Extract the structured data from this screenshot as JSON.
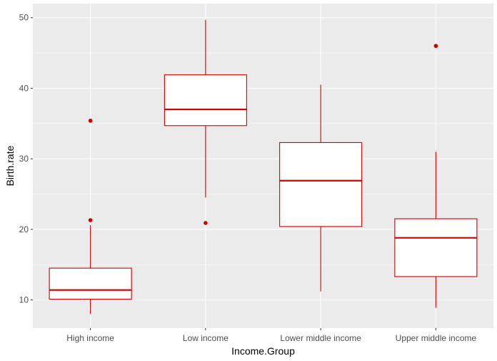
{
  "chart_data": {
    "type": "boxplot",
    "title": "",
    "xlabel": "Income.Group",
    "ylabel": "Birth.rate",
    "ylim": [
      6,
      52
    ],
    "yticks": [
      10,
      20,
      30,
      40,
      50
    ],
    "grid": true,
    "legend": "none",
    "categories": [
      "High income",
      "Low income",
      "Lower middle income",
      "Upper middle income"
    ],
    "boxes": [
      {
        "category": "High income",
        "whisker_low": 8.0,
        "q1": 10.1,
        "median": 11.4,
        "q3": 14.5,
        "whisker_high": 20.6,
        "outliers": [
          21.3,
          35.4
        ]
      },
      {
        "category": "Low income",
        "whisker_low": 24.5,
        "q1": 34.7,
        "median": 37.0,
        "q3": 41.9,
        "whisker_high": 49.7,
        "outliers": [
          20.9
        ]
      },
      {
        "category": "Lower middle income",
        "whisker_low": 11.2,
        "q1": 20.4,
        "median": 26.9,
        "q3": 32.3,
        "whisker_high": 40.5,
        "outliers": []
      },
      {
        "category": "Upper middle income",
        "whisker_low": 8.9,
        "q1": 13.3,
        "median": 18.8,
        "q3": 21.5,
        "whisker_high": 31.0,
        "outliers": [
          46.0
        ]
      }
    ],
    "colors": {
      "panel_background": "#ebebeb",
      "grid_major": "#ffffff",
      "box_outline": "#cc0000",
      "box_fill": "#ffffff",
      "outlier": "#cc0000",
      "tick_text": "#4d4d4d",
      "axis_title": "#000000"
    }
  }
}
